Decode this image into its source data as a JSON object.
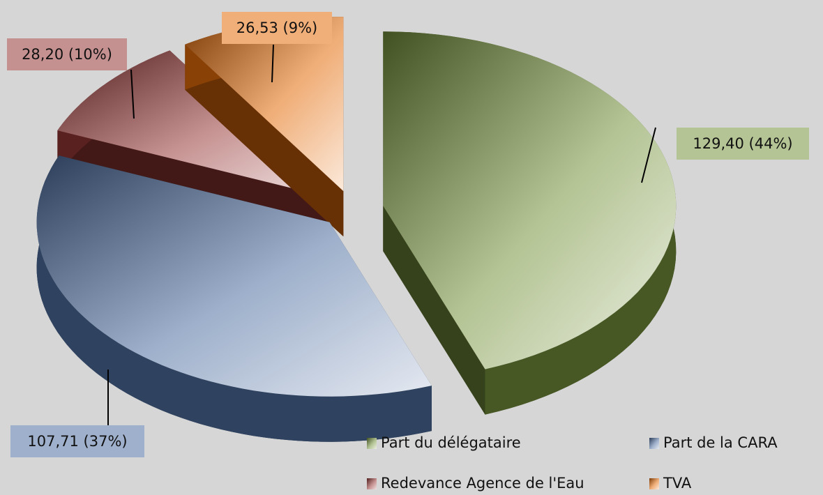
{
  "chart_data": {
    "type": "pie",
    "categories": [
      "Part du délégataire",
      "Part de la CARA",
      "Redevance Agence de l'Eau",
      "TVA"
    ],
    "values": [
      129.4,
      107.71,
      28.2,
      26.53
    ],
    "value_labels": [
      "129,40 (44%)",
      "107,71 (37%)",
      "28,20 (10%)",
      "26,53 (9%)"
    ],
    "colors": [
      "#77933c",
      "#4f6fa0",
      "#953735",
      "#e46c0a"
    ],
    "legend": "bottom"
  }
}
